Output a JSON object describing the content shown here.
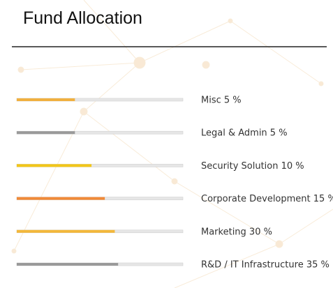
{
  "header": {
    "title": "Fund Allocation"
  },
  "bar_max": 100,
  "items": [
    {
      "label": "Misc 5 %",
      "fill": 35,
      "color": "#f0b040"
    },
    {
      "label": "Legal & Admin 5 %",
      "fill": 35,
      "color": "#9a9a9a"
    },
    {
      "label": "Security Solution 10 %",
      "fill": 45,
      "color": "#f2c618"
    },
    {
      "label": "Corporate Development 15 %",
      "fill": 53,
      "color": "#f08a38"
    },
    {
      "label": "Marketing 30 %",
      "fill": 59,
      "color": "#f3b83a"
    },
    {
      "label": "R&D / IT Infrastructure 35 %",
      "fill": 61,
      "color": "#9a9a9a"
    }
  ]
}
